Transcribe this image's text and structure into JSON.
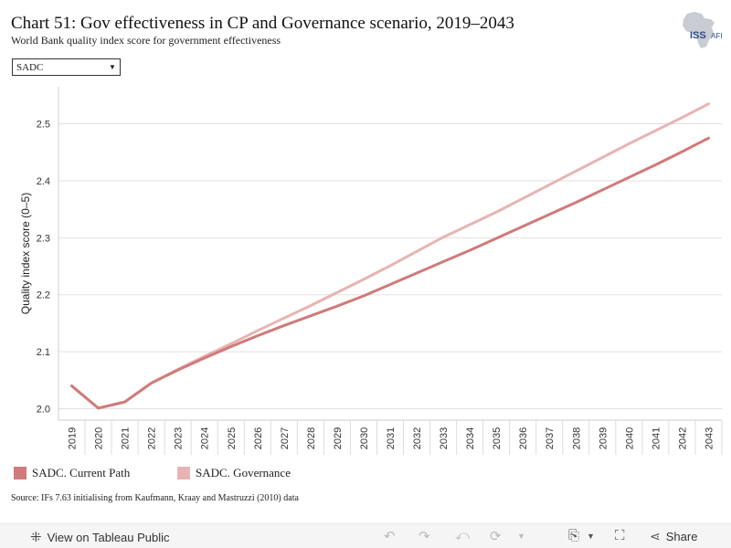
{
  "title": "Chart 51: Gov effectiveness in CP and Governance scenario, 2019–2043",
  "subtitle": "World Bank quality index score for government effectiveness",
  "logo_text": "ISS",
  "logo_suffix": "AFI",
  "filter": {
    "selected": "SADC"
  },
  "source": "Source: IFs 7.63 initialising from Kaufmann, Kraay and Mastruzzi (2010) data",
  "toolbar": {
    "view_label": "View on Tableau Public",
    "share_label": "Share",
    "icons": [
      "tableau-icon",
      "undo-icon",
      "redo-icon",
      "revert-icon",
      "refresh-icon",
      "download-icon",
      "fullscreen-icon",
      "share-icon"
    ]
  },
  "colors": {
    "current_path": "#d07a7a",
    "governance": "#e8b4b1",
    "grid": "#e1e1e1",
    "axis": "#cccccc"
  },
  "chart_data": {
    "type": "line",
    "title": "Chart 51: Gov effectiveness in CP and Governance scenario, 2019–2043",
    "subtitle": "World Bank quality index score for government effectiveness",
    "xlabel": "",
    "ylabel": "Quality index score (0–5)",
    "x": [
      "2019",
      "2020",
      "2021",
      "2022",
      "2023",
      "2024",
      "2025",
      "2026",
      "2027",
      "2028",
      "2029",
      "2030",
      "2031",
      "2032",
      "2033",
      "2034",
      "2035",
      "2036",
      "2037",
      "2038",
      "2039",
      "2040",
      "2041",
      "2042",
      "2043"
    ],
    "ylim": [
      1.98,
      2.565
    ],
    "yticks": [
      2.0,
      2.1,
      2.2,
      2.3,
      2.4,
      2.5
    ],
    "grid": true,
    "legend_position": "bottom",
    "series": [
      {
        "name": "SADC. Current Path",
        "color": "#d07a7a",
        "values": [
          2.04,
          2.001,
          2.012,
          2.045,
          2.068,
          2.089,
          2.109,
          2.128,
          2.146,
          2.163,
          2.18,
          2.198,
          2.218,
          2.238,
          2.258,
          2.278,
          2.299,
          2.32,
          2.341,
          2.362,
          2.384,
          2.406,
          2.428,
          2.451,
          2.475
        ]
      },
      {
        "name": "SADC. Governance",
        "color": "#e8b4b1",
        "values": [
          2.04,
          2.001,
          2.012,
          2.045,
          2.069,
          2.092,
          2.114,
          2.137,
          2.159,
          2.181,
          2.204,
          2.227,
          2.251,
          2.276,
          2.301,
          2.323,
          2.345,
          2.369,
          2.393,
          2.417,
          2.441,
          2.465,
          2.488,
          2.511,
          2.535
        ]
      }
    ]
  }
}
